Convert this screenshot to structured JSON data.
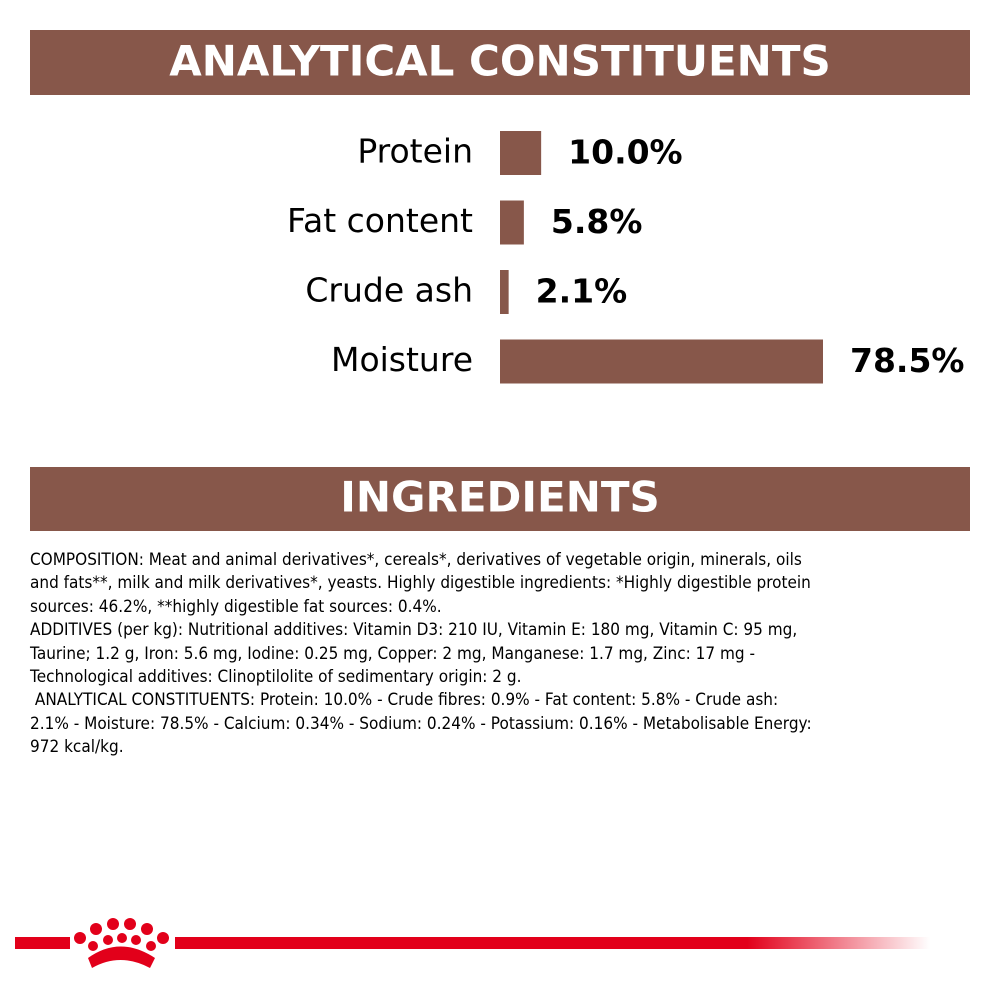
{
  "chart_data": {
    "type": "bar",
    "title": "ANALYTICAL CONSTITUENTS",
    "categories": [
      "Protein",
      "Fat content",
      "Crude ash",
      "Moisture"
    ],
    "values": [
      10.0,
      5.8,
      2.1,
      78.5
    ],
    "value_labels": [
      "10.0%",
      "5.8%",
      "2.1%",
      "78.5%"
    ],
    "color": "#87574a",
    "orientation": "horizontal"
  },
  "ingredients": {
    "title": "INGREDIENTS",
    "lines": [
      "COMPOSITION: Meat and animal derivatives*, cereals*, derivatives of vegetable origin, minerals, oils",
      "and fats**, milk and milk derivatives*, yeasts. Highly digestible ingredients: *Highly digestible protein",
      "sources: 46.2%, **highly digestible fat sources: 0.4%.",
      "ADDITIVES (per kg): Nutritional additives: Vitamin D3: 210 IU, Vitamin E: 180 mg, Vitamin C: 95 mg,",
      "Taurine; 1.2 g, Iron: 5.6 mg, Iodine: 0.25 mg, Copper: 2 mg, Manganese: 1.7 mg, Zinc: 17 mg -",
      "Technological additives: Clinoptilolite of sedimentary origin: 2 g.",
      " ANALYTICAL CONSTITUENTS: Protein: 10.0% - Crude fibres: 0.9% - Fat content: 5.8% - Crude ash:",
      "2.1% - Moisture: 78.5% - Calcium: 0.34% - Sodium: 0.24% - Potassium: 0.16% - Metabolisable Energy:",
      "972 kcal/kg."
    ]
  }
}
